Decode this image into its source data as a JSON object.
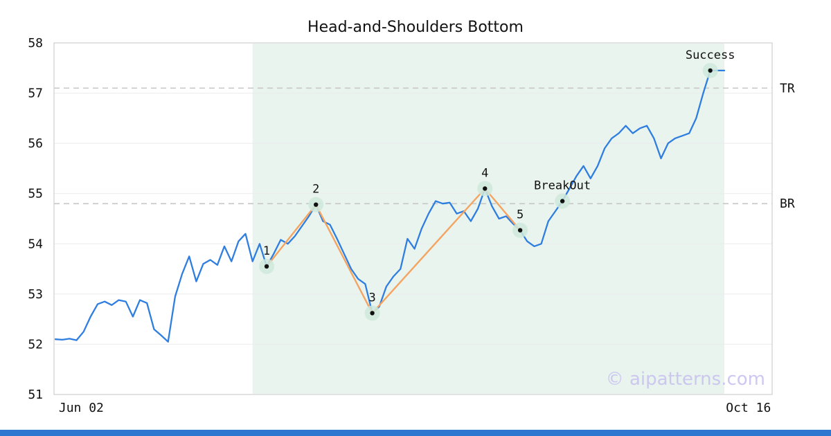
{
  "chart_data": {
    "type": "line",
    "title": "Head-and-Shoulders Bottom",
    "xlabel": "",
    "ylabel": "",
    "ylim": [
      51,
      58
    ],
    "yticks": [
      "58",
      "57",
      "56",
      "55",
      "54",
      "53",
      "52",
      "51"
    ],
    "xticks": [
      {
        "label": "Jun 02",
        "frac": 0.038
      },
      {
        "label": "Oct 16",
        "frac": 0.967
      }
    ],
    "grid": "horizontal",
    "legend": "none",
    "series": [
      {
        "name": "price",
        "values": [
          52.1,
          52.09,
          52.11,
          52.08,
          52.25,
          52.55,
          52.8,
          52.85,
          52.78,
          52.88,
          52.85,
          52.55,
          52.88,
          52.82,
          52.3,
          52.18,
          52.05,
          52.95,
          53.4,
          53.75,
          53.25,
          53.6,
          53.68,
          53.58,
          53.95,
          53.65,
          54.05,
          54.2,
          53.65,
          54.0,
          53.55,
          53.8,
          54.08,
          54.0,
          54.15,
          54.35,
          54.55,
          54.78,
          54.45,
          54.38,
          54.1,
          53.8,
          53.5,
          53.3,
          53.2,
          52.62,
          52.75,
          53.15,
          53.35,
          53.5,
          54.1,
          53.9,
          54.3,
          54.6,
          54.85,
          54.8,
          54.82,
          54.6,
          54.65,
          54.45,
          54.7,
          55.1,
          54.75,
          54.5,
          54.55,
          54.4,
          54.27,
          54.05,
          53.95,
          54.0,
          54.45,
          54.65,
          54.85,
          55.1,
          55.35,
          55.55,
          55.3,
          55.55,
          55.9,
          56.1,
          56.2,
          56.35,
          56.2,
          56.3,
          56.35,
          56.1,
          55.7,
          56.0,
          56.1,
          56.15,
          56.2,
          56.5,
          57.0,
          57.45,
          57.45,
          57.45
        ]
      }
    ],
    "pattern": {
      "name": "head-and-shoulders-bottom-zigzag",
      "points": [
        {
          "label": "1",
          "index": 30,
          "price": 53.55
        },
        {
          "label": "2",
          "index": 37,
          "price": 54.78
        },
        {
          "label": "3",
          "index": 45,
          "price": 52.62
        },
        {
          "label": "4",
          "index": 61,
          "price": 55.1
        },
        {
          "label": "5",
          "index": 66,
          "price": 54.27
        }
      ]
    },
    "events": [
      {
        "label": "BreakOut",
        "index": 72,
        "price": 54.85
      },
      {
        "label": "Success",
        "index": 93,
        "price": 57.45
      }
    ],
    "hlines": [
      {
        "label": "TR",
        "price": 57.1
      },
      {
        "label": "BR",
        "price": 54.8
      }
    ],
    "shaded_region": {
      "start_index": 28,
      "end_index": 95
    },
    "watermark": "© aipatterns.com"
  },
  "colors": {
    "price_line": "#2e7de0",
    "pattern_line": "#f4a460",
    "marker_halo": "#cfe9dc",
    "marker_dot": "#111111",
    "region_fill": "#e9f4ee",
    "gridline": "#ebebeb",
    "dashed_line": "#c9c9c9",
    "axis_border": "#cfcfcf",
    "watermark": "#c9c2ee",
    "footer_bar": "#2e77d0",
    "text": "#111111"
  }
}
